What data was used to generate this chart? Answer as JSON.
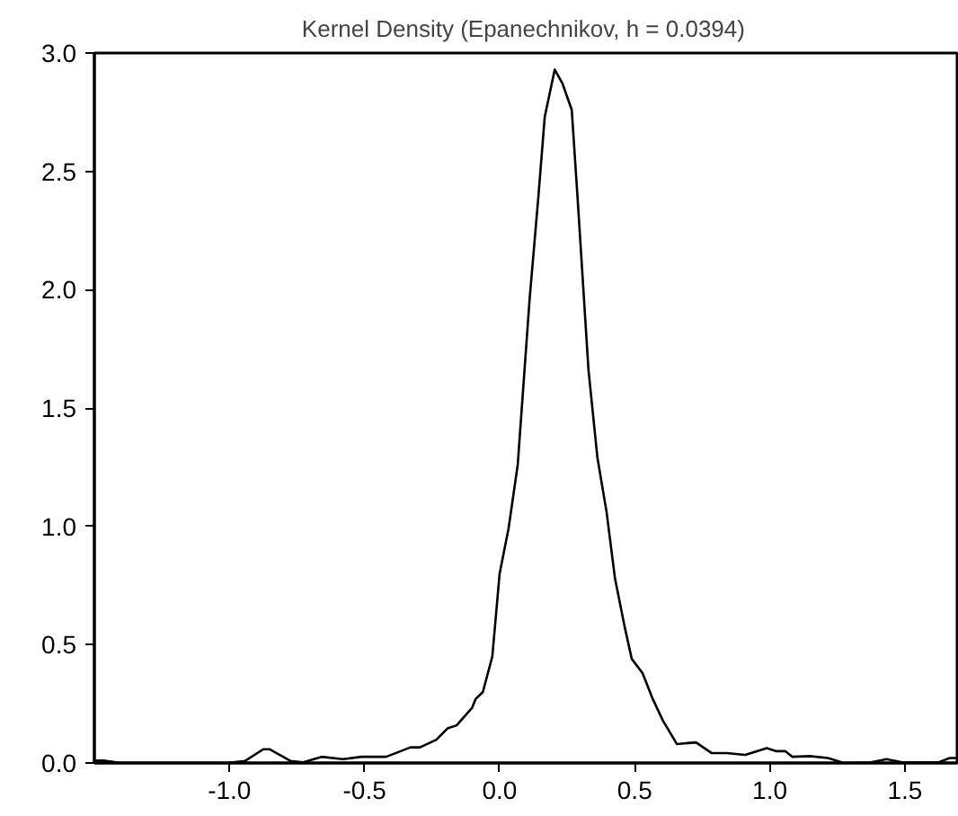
{
  "chart_data": {
    "type": "line",
    "title": "Kernel Density (Epanechnikov, h =  0.0394)",
    "x": [
      -1.5,
      -1.466,
      -1.4,
      -1.01,
      -0.943,
      -0.875,
      -0.852,
      -0.773,
      -0.727,
      -0.659,
      -0.58,
      -0.511,
      -0.42,
      -0.33,
      -0.295,
      -0.234,
      -0.193,
      -0.159,
      -0.102,
      -0.089,
      -0.062,
      -0.027,
      0.0,
      0.033,
      0.067,
      0.089,
      0.111,
      0.144,
      0.167,
      0.204,
      0.233,
      0.267,
      0.289,
      0.329,
      0.362,
      0.396,
      0.427,
      0.462,
      0.489,
      0.529,
      0.567,
      0.604,
      0.656,
      0.727,
      0.784,
      0.841,
      0.909,
      0.989,
      1.023,
      1.057,
      1.084,
      1.148,
      1.216,
      1.273,
      1.375,
      1.432,
      1.489,
      1.625,
      1.666,
      1.7
    ],
    "series": [
      {
        "color": "#000000",
        "values": [
          0.01,
          0.01,
          0.0,
          0.0,
          0.008,
          0.058,
          0.058,
          0.008,
          0.003,
          0.026,
          0.016,
          0.026,
          0.026,
          0.066,
          0.066,
          0.098,
          0.146,
          0.159,
          0.233,
          0.27,
          0.3,
          0.45,
          0.8,
          0.99,
          1.26,
          1.61,
          1.96,
          2.4,
          2.73,
          2.93,
          2.87,
          2.76,
          2.38,
          1.66,
          1.29,
          1.06,
          0.78,
          0.58,
          0.44,
          0.38,
          0.27,
          0.18,
          0.08,
          0.087,
          0.042,
          0.042,
          0.034,
          0.063,
          0.05,
          0.05,
          0.026,
          0.029,
          0.021,
          0.0,
          0.003,
          0.016,
          0.003,
          0.003,
          0.021,
          0.021
        ]
      }
    ],
    "xlim": [
      -1.5,
      1.7
    ],
    "ylim": [
      0,
      3
    ],
    "xticks": [
      {
        "value": -1,
        "label": "-1.0"
      },
      {
        "value": -0.5,
        "label": "-0.5"
      },
      {
        "value": 0,
        "label": "0.0"
      },
      {
        "value": 0.5,
        "label": "0.5"
      },
      {
        "value": 1,
        "label": "1.0"
      },
      {
        "value": 1.5,
        "label": "1.5"
      }
    ],
    "yticks": [
      {
        "value": 0,
        "label": "0.0"
      },
      {
        "value": 0.5,
        "label": "0.5"
      },
      {
        "value": 1,
        "label": "1.0"
      },
      {
        "value": 1.5,
        "label": "1.5"
      },
      {
        "value": 2,
        "label": "2.0"
      },
      {
        "value": 2.5,
        "label": "2.5"
      },
      {
        "value": 3,
        "label": "3.0"
      }
    ],
    "line_style": "solid"
  }
}
